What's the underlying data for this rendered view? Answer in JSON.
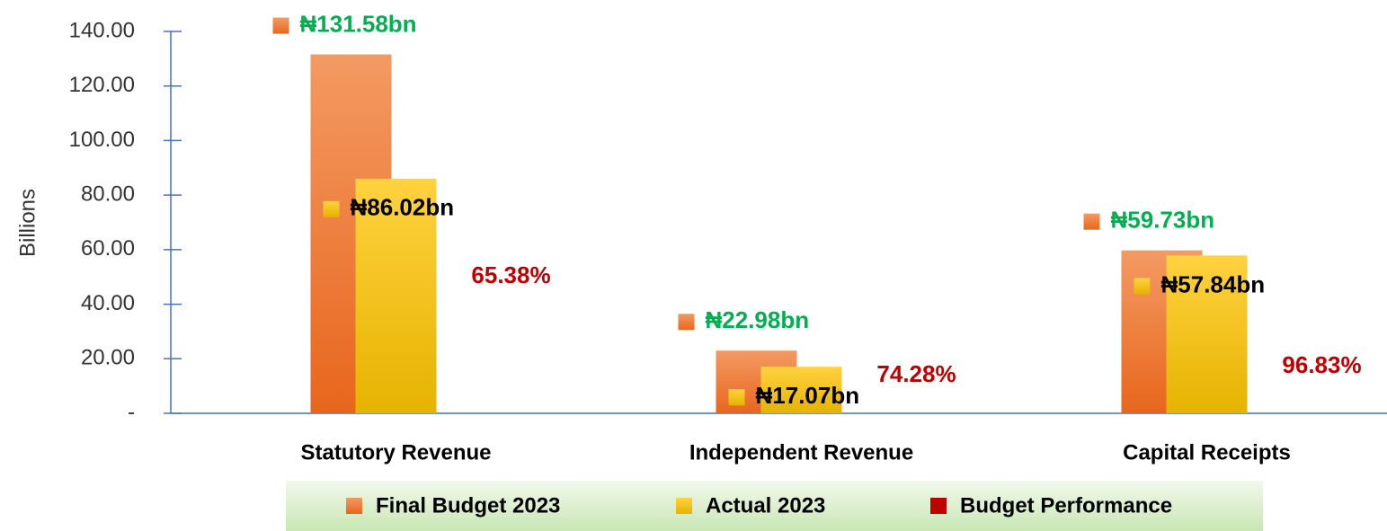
{
  "chart_data": {
    "type": "bar",
    "y_label": "Billions",
    "categories": [
      "Statutory Revenue",
      "Independent Revenue",
      "Capital Receipts"
    ],
    "series": [
      {
        "name": "Final Budget 2023",
        "color": "#ee7a35",
        "values": [
          131.58,
          22.98,
          59.73
        ],
        "value_labels": [
          "₦131.58bn",
          "₦22.98bn",
          "₦59.73bn"
        ],
        "label_color": "#00b050"
      },
      {
        "name": "Actual 2023",
        "color": "#fbc21a",
        "values": [
          86.02,
          17.07,
          57.84
        ],
        "value_labels": [
          "₦86.02bn",
          "₦17.07bn",
          "₦57.84bn"
        ],
        "label_color": "#000000"
      },
      {
        "name": "Budget Performance",
        "color": "#c00000",
        "values": [
          65.38,
          74.28,
          96.83
        ],
        "value_labels": [
          "65.38%",
          "74.28%",
          "96.83%"
        ],
        "label_color": "#c00000"
      }
    ],
    "ylim": [
      0,
      140
    ],
    "yticks": [
      {
        "value": 0,
        "label": "-"
      },
      {
        "value": 20,
        "label": "20.00"
      },
      {
        "value": 40,
        "label": "40.00"
      },
      {
        "value": 60,
        "label": "60.00"
      },
      {
        "value": 80,
        "label": "80.00"
      },
      {
        "value": 100,
        "label": "100.00"
      },
      {
        "value": 120,
        "label": "120.00"
      },
      {
        "value": 140,
        "label": "140.00"
      }
    ]
  }
}
